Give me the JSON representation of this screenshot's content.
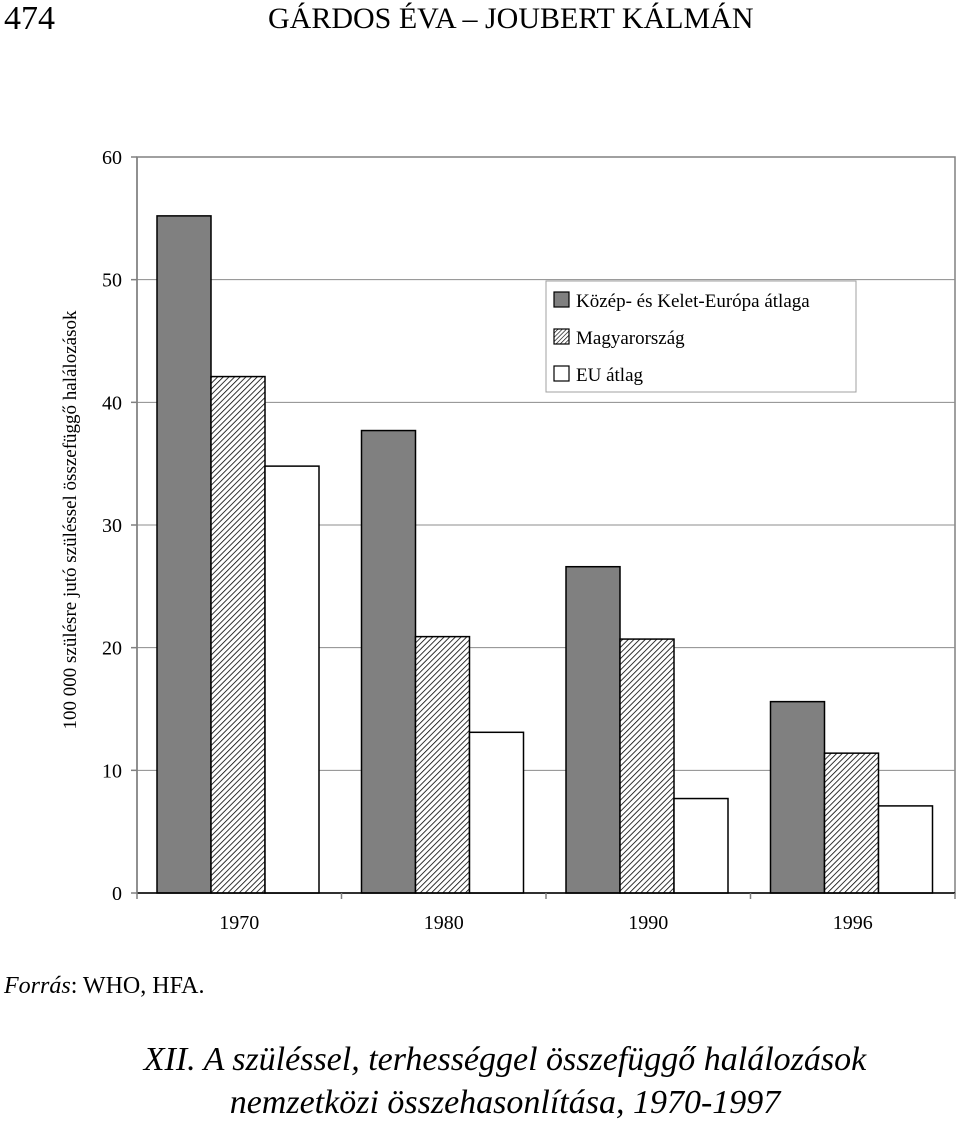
{
  "header": {
    "page_number": "474",
    "running_title": "GÁRDOS ÉVA – JOUBERT KÁLMÁN"
  },
  "chart_data": {
    "type": "bar",
    "categories": [
      "1970",
      "1980",
      "1990",
      "1996"
    ],
    "series": [
      {
        "name": "Közép- és Kelet-Európa átlaga",
        "values": [
          55.2,
          37.7,
          26.6,
          15.6
        ],
        "fill": "#808080"
      },
      {
        "name": "Magyarország",
        "values": [
          42.1,
          20.9,
          20.7,
          11.4
        ],
        "fill": "hatch"
      },
      {
        "name": "EU átlag",
        "values": [
          34.8,
          13.1,
          7.7,
          7.1
        ],
        "fill": "#ffffff"
      }
    ],
    "ylabel": "100 000 szülésre jutó szüléssel összefüggő halálozások",
    "xlabel": "",
    "ylim": [
      0,
      60
    ],
    "yticks": [
      0,
      10,
      20,
      30,
      40,
      50,
      60
    ],
    "grid": true,
    "legend": "top-right"
  },
  "source": {
    "label": "Forrás",
    "text": ": WHO, HFA."
  },
  "caption": {
    "line1": "XII. A szüléssel, terhességgel összefüggő halálozások",
    "line2": "nemzetközi összehasonlítása, 1970-1997"
  }
}
